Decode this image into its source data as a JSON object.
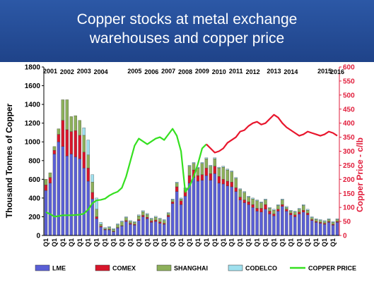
{
  "chart_data": {
    "type": "bar",
    "title": [
      "Copper stocks at metal exchange",
      "warehouses and copper price"
    ],
    "ylabel": "Thousand Tonnes of Copper",
    "y2label": "Copper Price - c/lb",
    "ylim": [
      0,
      1800
    ],
    "y2lim": [
      0,
      600
    ],
    "yticks": [
      0,
      200,
      400,
      600,
      800,
      1000,
      1200,
      1400,
      1600,
      1800
    ],
    "y2ticks": [
      0,
      50,
      100,
      150,
      200,
      250,
      300,
      350,
      400,
      450,
      500,
      550,
      600
    ],
    "grid": false,
    "legend_position": "bottom",
    "stacked": true,
    "quarter_labels": [
      "Q1",
      "Q3"
    ],
    "year_labels": [
      {
        "label": "2001",
        "q": 1.5
      },
      {
        "label": "2002",
        "q": 5.5
      },
      {
        "label": "2003",
        "q": 9.5
      },
      {
        "label": "2004",
        "q": 13.5
      },
      {
        "label": "2005",
        "q": 21.5
      },
      {
        "label": "2006",
        "q": 25.5
      },
      {
        "label": "2007",
        "q": 29.5
      },
      {
        "label": "2008",
        "q": 33.5
      },
      {
        "label": "2009",
        "q": 37.5
      },
      {
        "label": "2010",
        "q": 41.5
      },
      {
        "label": "2011",
        "q": 45.5
      },
      {
        "label": "2012",
        "q": 49.5
      },
      {
        "label": "2013",
        "q": 54.5
      },
      {
        "label": "2014",
        "q": 58.5
      },
      {
        "label": "2015",
        "q": 66.5
      },
      {
        "label": "2016",
        "q": 69.5
      }
    ],
    "series": [
      {
        "name": "LME",
        "color": "#5a5fd6",
        "values": [
          480,
          560,
          870,
          1000,
          950,
          850,
          870,
          840,
          820,
          720,
          580,
          390,
          180,
          90,
          60,
          60,
          40,
          80,
          100,
          150,
          120,
          110,
          160,
          200,
          180,
          140,
          150,
          130,
          120,
          200,
          340,
          470,
          330,
          420,
          560,
          620,
          580,
          590,
          640,
          590,
          660,
          560,
          550,
          530,
          520,
          470,
          380,
          350,
          330,
          300,
          260,
          250,
          280,
          230,
          210,
          260,
          310,
          260,
          220,
          200,
          230,
          250,
          220,
          160,
          140,
          130,
          120,
          140,
          110,
          140
        ]
      },
      {
        "name": "COMEX",
        "color": "#d8162b",
        "values": [
          60,
          60,
          40,
          80,
          280,
          280,
          240,
          280,
          250,
          170,
          140,
          70,
          20,
          10,
          5,
          5,
          5,
          5,
          5,
          10,
          10,
          10,
          10,
          15,
          15,
          15,
          15,
          15,
          10,
          15,
          20,
          50,
          40,
          60,
          80,
          80,
          60,
          60,
          80,
          70,
          80,
          70,
          50,
          50,
          50,
          40,
          30,
          30,
          30,
          30,
          30,
          40,
          50,
          30,
          20,
          20,
          20,
          20,
          20,
          20,
          20,
          20,
          20,
          10,
          10,
          10,
          10,
          10,
          10,
          10
        ]
      },
      {
        "name": "SHANGHAI",
        "color": "#8db05a",
        "values": [
          60,
          50,
          40,
          60,
          220,
          320,
          160,
          160,
          160,
          180,
          140,
          110,
          80,
          20,
          10,
          20,
          20,
          30,
          40,
          30,
          20,
          20,
          40,
          40,
          30,
          20,
          30,
          30,
          30,
          20,
          20,
          40,
          20,
          20,
          100,
          70,
          80,
          120,
          100,
          80,
          80,
          90,
          130,
          120,
          110,
          100,
          80,
          80,
          50,
          60,
          80,
          60,
          50,
          30,
          40,
          40,
          50,
          20,
          20,
          30,
          30,
          50,
          30,
          20,
          20,
          20,
          20,
          20,
          20,
          20
        ]
      },
      {
        "name": "CODELCO",
        "color": "#9fe0ee",
        "values": [
          0,
          0,
          0,
          0,
          0,
          0,
          0,
          0,
          0,
          80,
          160,
          80,
          120,
          20,
          10,
          10,
          10,
          10,
          10,
          10,
          10,
          10,
          10,
          10,
          10,
          10,
          10,
          10,
          10,
          10,
          10,
          10,
          10,
          10,
          10,
          10,
          10,
          10,
          10,
          10,
          10,
          10,
          10,
          10,
          10,
          10,
          10,
          10,
          10,
          10,
          10,
          10,
          10,
          10,
          10,
          10,
          10,
          10,
          10,
          10,
          10,
          10,
          10,
          10,
          10,
          10,
          10,
          10,
          10,
          10
        ]
      },
      {
        "name": "COPPER PRICE",
        "type": "line",
        "axis": "right",
        "color": "#35e020",
        "color_after": "#e8162d",
        "switch_index": 38,
        "values": [
          83,
          76,
          67,
          69,
          72,
          72,
          72,
          73,
          74,
          78,
          92,
          115,
          125,
          127,
          131,
          142,
          150,
          156,
          170,
          210,
          265,
          320,
          345,
          335,
          325,
          335,
          345,
          350,
          340,
          360,
          380,
          355,
          300,
          155,
          175,
          210,
          255,
          310,
          325,
          310,
          295,
          300,
          310,
          330,
          340,
          350,
          370,
          375,
          390,
          400,
          405,
          395,
          400,
          415,
          430,
          420,
          400,
          385,
          375,
          365,
          355,
          360,
          370,
          365,
          360,
          355,
          360,
          370,
          365,
          355
        ]
      }
    ]
  }
}
